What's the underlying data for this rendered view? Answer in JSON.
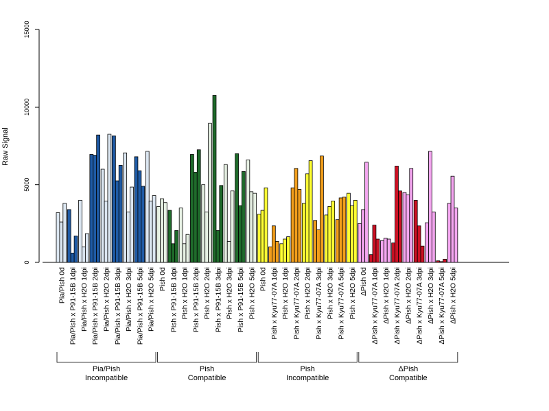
{
  "chart_data": {
    "type": "bar",
    "title": "",
    "xlabel": "",
    "ylabel": "Raw Signal",
    "ylim": [
      0,
      15000
    ],
    "yticks": [
      0,
      5000,
      10000,
      15000
    ],
    "ytick_labels": [
      "0",
      "5000",
      "10000",
      "15000"
    ],
    "grid": false,
    "legend": "none",
    "categories": [
      "Pia/Pish 0d",
      "Pia/Pish x P91-15B 1dpi",
      "Pia/Pish x H2O 1dpi",
      "Pia/Pish x P91-15B 2dpi",
      "Pia/Pish x H2O 2dpi",
      "Pia/Pish x P91-15B 3dpi",
      "Pia/Pish x H2O 3dpi",
      "Pia/Pish x P91-15B 5dpi",
      "Pia/Pish x H2O 5dpi",
      "Pish 0d",
      "Pish x P91-15B 1dpi",
      "Pish x H2O 1dpi",
      "Pish x P91-15B 2dpi",
      "Pish x H2O 2dpi",
      "Pish x P91-15B 3dpi",
      "Pish x H2O 3dpi",
      "Pish x P91-15B 5dpi",
      "Pish x H2O 5dpi",
      "Pish 0d",
      "Pish x Kyu77-07A 1dpi",
      "Pish x H2O 1dpi",
      "Pish x Kyu77-07A 2dpi",
      "Pish x H2O 2dpi",
      "Pish x Kyu77-07A 3dpi",
      "Pish x H2O 3dpi",
      "Pish x Kyu77-07A 5dpi",
      "Pish x H2O 5dpi",
      "ΔPish 0d",
      "ΔPish x Kyu77-07A 1dpi",
      "ΔPish x H2O 1dpi",
      "ΔPish x Kyu77-07A 2dpi",
      "ΔPish x H2O 2dpi",
      "ΔPish x Kyu77-07A 3dpi",
      "ΔPish x H2O 3dpi",
      "ΔPish x Kyu77-07A 5dpi",
      "ΔPish x H2O 5dpi"
    ],
    "values": [
      [
        3200,
        2600,
        3800
      ],
      [
        3400,
        600,
        1700
      ],
      [
        4000,
        1000,
        1850
      ],
      [
        6950,
        6900,
        8200
      ],
      [
        6000,
        3950,
        8250
      ],
      [
        8150,
        5250,
        6250
      ],
      [
        7050,
        3250,
        4850
      ],
      [
        6800,
        5900,
        4900
      ],
      [
        7150,
        3950,
        4300
      ],
      [
        3600,
        4100,
        3850
      ],
      [
        3350,
        1200,
        2050
      ],
      [
        3500,
        1200,
        1800
      ],
      [
        6950,
        5800,
        7250
      ],
      [
        5000,
        3250,
        8950
      ],
      [
        10750,
        2050,
        4950
      ],
      [
        6300,
        1350,
        4600
      ],
      [
        7000,
        3650,
        5850
      ],
      [
        6600,
        4550,
        4450
      ],
      [
        3100,
        3350,
        4800
      ],
      [
        1000,
        2350,
        1350
      ],
      [
        1200,
        1500,
        1650
      ],
      [
        4800,
        6050,
        4700
      ],
      [
        3800,
        5700,
        6550
      ],
      [
        2700,
        2100,
        6850
      ],
      [
        3050,
        3600,
        3950
      ],
      [
        2750,
        4150,
        4200
      ],
      [
        4450,
        3650,
        4000
      ],
      [
        2500,
        3400,
        6450
      ],
      [
        500,
        2400,
        1500
      ],
      [
        1400,
        1550,
        1500
      ],
      [
        1250,
        6200,
        4600
      ],
      [
        4500,
        4350,
        6050
      ],
      [
        4000,
        2350,
        1050
      ],
      [
        2550,
        7150,
        3250
      ],
      [
        100,
        50,
        200
      ],
      [
        3800,
        5550,
        3500
      ]
    ],
    "bar_colors": [
      "#dbe6f1",
      "#1f5ba6",
      "#dbe6f1",
      "#1f5ba6",
      "#dbe6f1",
      "#1f5ba6",
      "#dbe6f1",
      "#1f5ba6",
      "#dbe6f1",
      "#e6f0e3",
      "#1f6b2b",
      "#e6f0e3",
      "#1f6b2b",
      "#e6f0e3",
      "#1f6b2b",
      "#e6f0e3",
      "#1f6b2b",
      "#e6f0e3",
      "#ffff33",
      "#f29e1b",
      "#ffff33",
      "#f29e1b",
      "#ffff33",
      "#f29e1b",
      "#ffff33",
      "#f29e1b",
      "#ffff33",
      "#f4a6f0",
      "#cc1124",
      "#f4a6f0",
      "#cc1124",
      "#f4a6f0",
      "#cc1124",
      "#f4a6f0",
      "#cc1124",
      "#f4a6f0"
    ],
    "groups": [
      {
        "line1": "Pia/Pish",
        "line2": "Incompatible",
        "start": 0,
        "end": 8
      },
      {
        "line1": "Pish",
        "line2": "Compatible",
        "start": 9,
        "end": 17
      },
      {
        "line1": "Pish",
        "line2": "Incompatible",
        "start": 18,
        "end": 26
      },
      {
        "line1": "ΔPish",
        "line2": "Compatible",
        "start": 27,
        "end": 35
      }
    ]
  }
}
